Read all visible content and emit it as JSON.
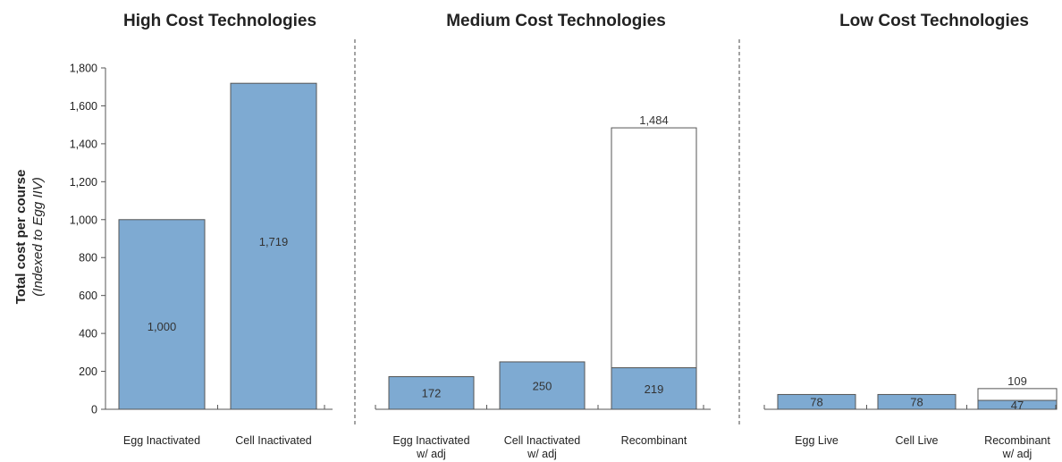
{
  "chart_data": {
    "type": "bar",
    "ylabel": "Total cost per course",
    "ylabel_sub": "(Indexed to Egg IIV)",
    "ylim": [
      0,
      1800
    ],
    "yticks": [
      "0",
      "200",
      "400",
      "600",
      "800",
      "1,000",
      "1,200",
      "1,400",
      "1,600",
      "1,800"
    ],
    "ytick_values": [
      0,
      200,
      400,
      600,
      800,
      1000,
      1200,
      1400,
      1600,
      1800
    ],
    "colors": {
      "fill": "#7eaad2",
      "outline": "#555555",
      "total_fill": "#ffffff",
      "divider": "#666666"
    },
    "panels": [
      {
        "title": "High Cost Technologies",
        "bars": [
          {
            "category": [
              "Egg Inactivated"
            ],
            "value": 1000,
            "label": "1,000"
          },
          {
            "category": [
              "Cell Inactivated"
            ],
            "value": 1719,
            "label": "1,719"
          }
        ]
      },
      {
        "title": "Medium Cost Technologies",
        "bars": [
          {
            "category": [
              "Egg Inactivated",
              "w/ adj"
            ],
            "value": 172,
            "label": "172"
          },
          {
            "category": [
              "Cell Inactivated",
              "w/ adj"
            ],
            "value": 250,
            "label": "250"
          },
          {
            "category": [
              "Recombinant"
            ],
            "value": 219,
            "label": "219",
            "total": 1484,
            "total_label": "1,484"
          }
        ]
      },
      {
        "title": "Low Cost Technologies",
        "bars": [
          {
            "category": [
              "Egg Live"
            ],
            "value": 78,
            "label": "78"
          },
          {
            "category": [
              "Cell Live"
            ],
            "value": 78,
            "label": "78"
          },
          {
            "category": [
              "Recombinant",
              "w/ adj"
            ],
            "value": 47,
            "label": "47",
            "total": 109,
            "total_label": "109"
          }
        ]
      }
    ]
  }
}
